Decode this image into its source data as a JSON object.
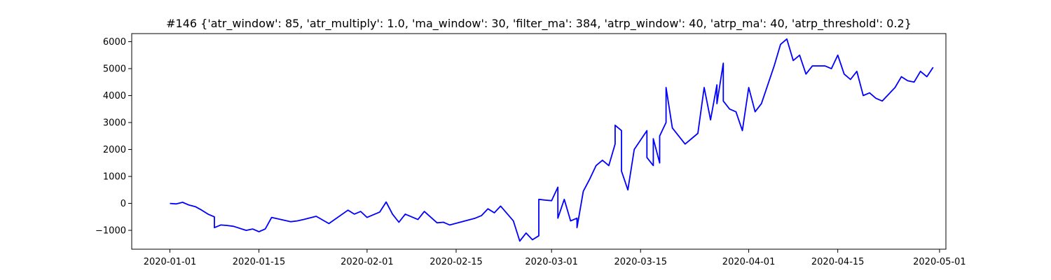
{
  "chart_data": {
    "type": "line",
    "title": "#146 {'atr_window': 85, 'atr_multiply': 1.0, 'ma_window': 30, 'filter_ma': 384, 'atrp_window': 40, 'atrp_ma': 40, 'atrp_threshold': 0.2}",
    "xlabel": "",
    "ylabel": "",
    "x_axis_type": "date",
    "xlim": [
      "2019-12-26",
      "2020-05-02"
    ],
    "ylim": [
      -1700,
      6300
    ],
    "grid": false,
    "legend": null,
    "x_ticks": [
      "2020-01-01",
      "2020-01-15",
      "2020-02-01",
      "2020-02-15",
      "2020-03-01",
      "2020-03-15",
      "2020-04-01",
      "2020-04-15",
      "2020-05-01"
    ],
    "y_ticks": [
      -1000,
      0,
      1000,
      2000,
      3000,
      4000,
      5000,
      6000
    ],
    "series": [
      {
        "color": "#0000ff",
        "x": [
          "2020-01-01",
          "2020-01-02",
          "2020-01-03",
          "2020-01-04",
          "2020-01-05",
          "2020-01-06",
          "2020-01-07",
          "2020-01-08",
          "2020-01-08",
          "2020-01-09",
          "2020-01-10",
          "2020-01-11",
          "2020-01-13",
          "2020-01-14",
          "2020-01-15",
          "2020-01-16",
          "2020-01-17",
          "2020-01-20",
          "2020-01-21",
          "2020-01-22",
          "2020-01-24",
          "2020-01-26",
          "2020-01-29",
          "2020-01-30",
          "2020-01-31",
          "2020-02-01",
          "2020-02-03",
          "2020-02-04",
          "2020-02-05",
          "2020-02-06",
          "2020-02-07",
          "2020-02-09",
          "2020-02-10",
          "2020-02-12",
          "2020-02-13",
          "2020-02-14",
          "2020-02-18",
          "2020-02-19",
          "2020-02-20",
          "2020-02-21",
          "2020-02-22",
          "2020-02-24",
          "2020-02-25",
          "2020-02-26",
          "2020-02-27",
          "2020-02-28",
          "2020-02-28",
          "2020-02-29",
          "2020-03-01",
          "2020-03-02",
          "2020-03-02",
          "2020-03-03",
          "2020-03-04",
          "2020-03-05",
          "2020-03-05",
          "2020-03-06",
          "2020-03-07",
          "2020-03-08",
          "2020-03-09",
          "2020-03-10",
          "2020-03-11",
          "2020-03-11",
          "2020-03-12",
          "2020-03-12",
          "2020-03-13",
          "2020-03-14",
          "2020-03-16",
          "2020-03-16",
          "2020-03-17",
          "2020-03-17",
          "2020-03-18",
          "2020-03-18",
          "2020-03-19",
          "2020-03-19",
          "2020-03-20",
          "2020-03-21",
          "2020-03-22",
          "2020-03-24",
          "2020-03-25",
          "2020-03-26",
          "2020-03-27",
          "2020-03-27",
          "2020-03-28",
          "2020-03-28",
          "2020-03-29",
          "2020-03-30",
          "2020-03-31",
          "2020-04-01",
          "2020-04-02",
          "2020-04-03",
          "2020-04-05",
          "2020-04-06",
          "2020-04-07",
          "2020-04-08",
          "2020-04-09",
          "2020-04-10",
          "2020-04-11",
          "2020-04-13",
          "2020-04-14",
          "2020-04-15",
          "2020-04-16",
          "2020-04-17",
          "2020-04-18",
          "2020-04-19",
          "2020-04-20",
          "2020-04-21",
          "2020-04-22",
          "2020-04-24",
          "2020-04-25",
          "2020-04-26",
          "2020-04-27",
          "2020-04-28",
          "2020-04-29",
          "2020-04-30"
        ],
        "y": [
          0,
          -20,
          40,
          -60,
          -120,
          -250,
          -400,
          -500,
          -900,
          -800,
          -820,
          -850,
          -1000,
          -950,
          -1050,
          -950,
          -520,
          -680,
          -650,
          -600,
          -480,
          -750,
          -250,
          -400,
          -300,
          -520,
          -320,
          50,
          -400,
          -700,
          -400,
          -600,
          -300,
          -720,
          -700,
          -800,
          -550,
          -450,
          -200,
          -350,
          -100,
          -650,
          -1400,
          -1100,
          -1350,
          -1200,
          150,
          120,
          100,
          600,
          -550,
          150,
          -650,
          -550,
          -900,
          450,
          900,
          1400,
          1600,
          1400,
          2200,
          2900,
          2700,
          1200,
          500,
          2000,
          2700,
          1700,
          1400,
          2400,
          1500,
          2500,
          3000,
          4300,
          2800,
          2500,
          2200,
          2600,
          4300,
          3100,
          4400,
          3700,
          5200,
          3800,
          3500,
          3400,
          2700,
          4300,
          3400,
          3700,
          5100,
          5900,
          6100,
          5300,
          5500,
          4800,
          5100,
          5100,
          5000,
          5500,
          4800,
          4600,
          4900,
          4000,
          4100,
          3900,
          3800,
          4300,
          4700,
          4550,
          4500,
          4900,
          4700,
          5050
        ]
      }
    ]
  }
}
